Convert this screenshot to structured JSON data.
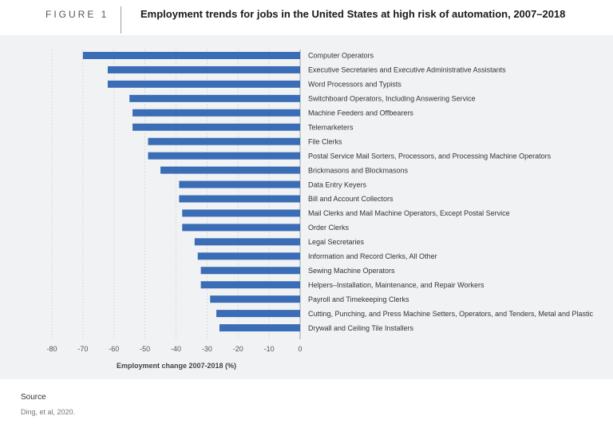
{
  "figure": {
    "label": "FIGURE 1",
    "title": "Employment trends for jobs in the United States at high risk of automation, 2007–2018"
  },
  "source": {
    "label": "Source",
    "text": "Ding, et al, 2020."
  },
  "colors": {
    "bar": "#3a6db5",
    "panel": "#f1f2f4",
    "grid": "#d0d3d8",
    "axis": "#9aa0a6"
  },
  "chart_data": {
    "type": "bar",
    "orientation": "horizontal",
    "title": "Employment trends for jobs in the United States at high risk of automation, 2007–2018",
    "xlabel": "Employment change 2007-2018 (%)",
    "ylabel": "",
    "xlim": [
      -80,
      0
    ],
    "xticks": [
      -80,
      -70,
      -60,
      -50,
      -40,
      -30,
      -20,
      -10,
      0
    ],
    "grid": true,
    "categories": [
      "Computer Operators",
      "Executive Secretaries and Executive Administrative Assistants",
      "Word Processors and Typists",
      "Switchboard Operators, Including Answering Service",
      "Machine Feeders and Offbearers",
      "Telemarketers",
      "File Clerks",
      "Postal Service Mail Sorters, Processors, and Processing Machine Operators",
      "Brickmasons and Blockmasons",
      "Data Entry Keyers",
      "Bill and Account Collectors",
      "Mail Clerks and Mail Machine Operators, Except Postal Service",
      "Order Clerks",
      "Legal Secretaries",
      "Information and Record Clerks, All Other",
      "Sewing Machine Operators",
      "Helpers–Installation, Maintenance, and Repair Workers",
      "Payroll and Timekeeping Clerks",
      "Cutting, Punching, and Press Machine Setters, Operators, and Tenders, Metal and Plastic",
      "Drywall and Ceiling Tile Installers"
    ],
    "values": [
      -70,
      -62,
      -62,
      -55,
      -54,
      -54,
      -49,
      -49,
      -45,
      -39,
      -39,
      -38,
      -38,
      -34,
      -33,
      -32,
      -32,
      -29,
      -27,
      -26
    ]
  }
}
